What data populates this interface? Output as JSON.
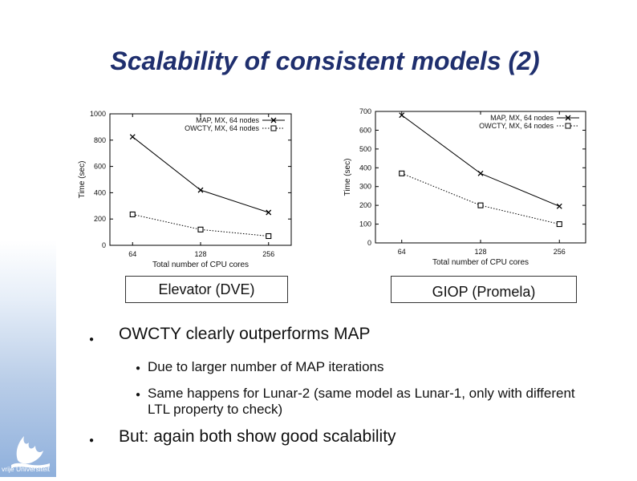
{
  "slide": {
    "title": "Scalability of consistent models (2)",
    "logo_text": "vrije Universiteit"
  },
  "captions": {
    "left": "Elevator (DVE)",
    "right": "GIOP (Promela)"
  },
  "bullets": [
    {
      "text": "OWCTY clearly outperforms MAP",
      "children": [
        "Due to larger number of MAP iterations",
        "Same happens for Lunar-2 (same model as Lunar-1, only with different LTL property to check)"
      ]
    },
    {
      "text": "But: again both show good scalability",
      "children": []
    }
  ],
  "chart_data": [
    {
      "type": "line",
      "xlabel": "Total number of CPU cores",
      "ylabel": "Time (sec)",
      "categories": [
        "64",
        "128",
        "256"
      ],
      "ylim": [
        0,
        1000
      ],
      "yticks": [
        0,
        200,
        400,
        600,
        800,
        1000
      ],
      "legend_position": "top-right",
      "grid": false,
      "series": [
        {
          "name": "MAP, MX, 64 nodes",
          "marker": "x",
          "line": "solid",
          "values": [
            825,
            420,
            250
          ]
        },
        {
          "name": "OWCTY, MX, 64 nodes",
          "marker": "square",
          "line": "dotted",
          "values": [
            235,
            120,
            70
          ]
        }
      ]
    },
    {
      "type": "line",
      "xlabel": "Total number of CPU cores",
      "ylabel": "Time (sec)",
      "categories": [
        "64",
        "128",
        "256"
      ],
      "ylim": [
        0,
        700
      ],
      "yticks": [
        0,
        100,
        200,
        300,
        400,
        500,
        600,
        700
      ],
      "legend_position": "top-right",
      "grid": false,
      "series": [
        {
          "name": "MAP, MX, 64 nodes",
          "marker": "x",
          "line": "solid",
          "values": [
            680,
            370,
            195
          ]
        },
        {
          "name": "OWCTY, MX, 64 nodes",
          "marker": "square",
          "line": "dotted",
          "values": [
            370,
            200,
            100
          ]
        }
      ]
    }
  ],
  "colors": {
    "title": "#1f2f6e",
    "band_bottom": "#8fb0dc",
    "series_line": "#000000"
  },
  "icons": {
    "bullet": "dot-icon",
    "logo": "griffin-logo-icon"
  }
}
